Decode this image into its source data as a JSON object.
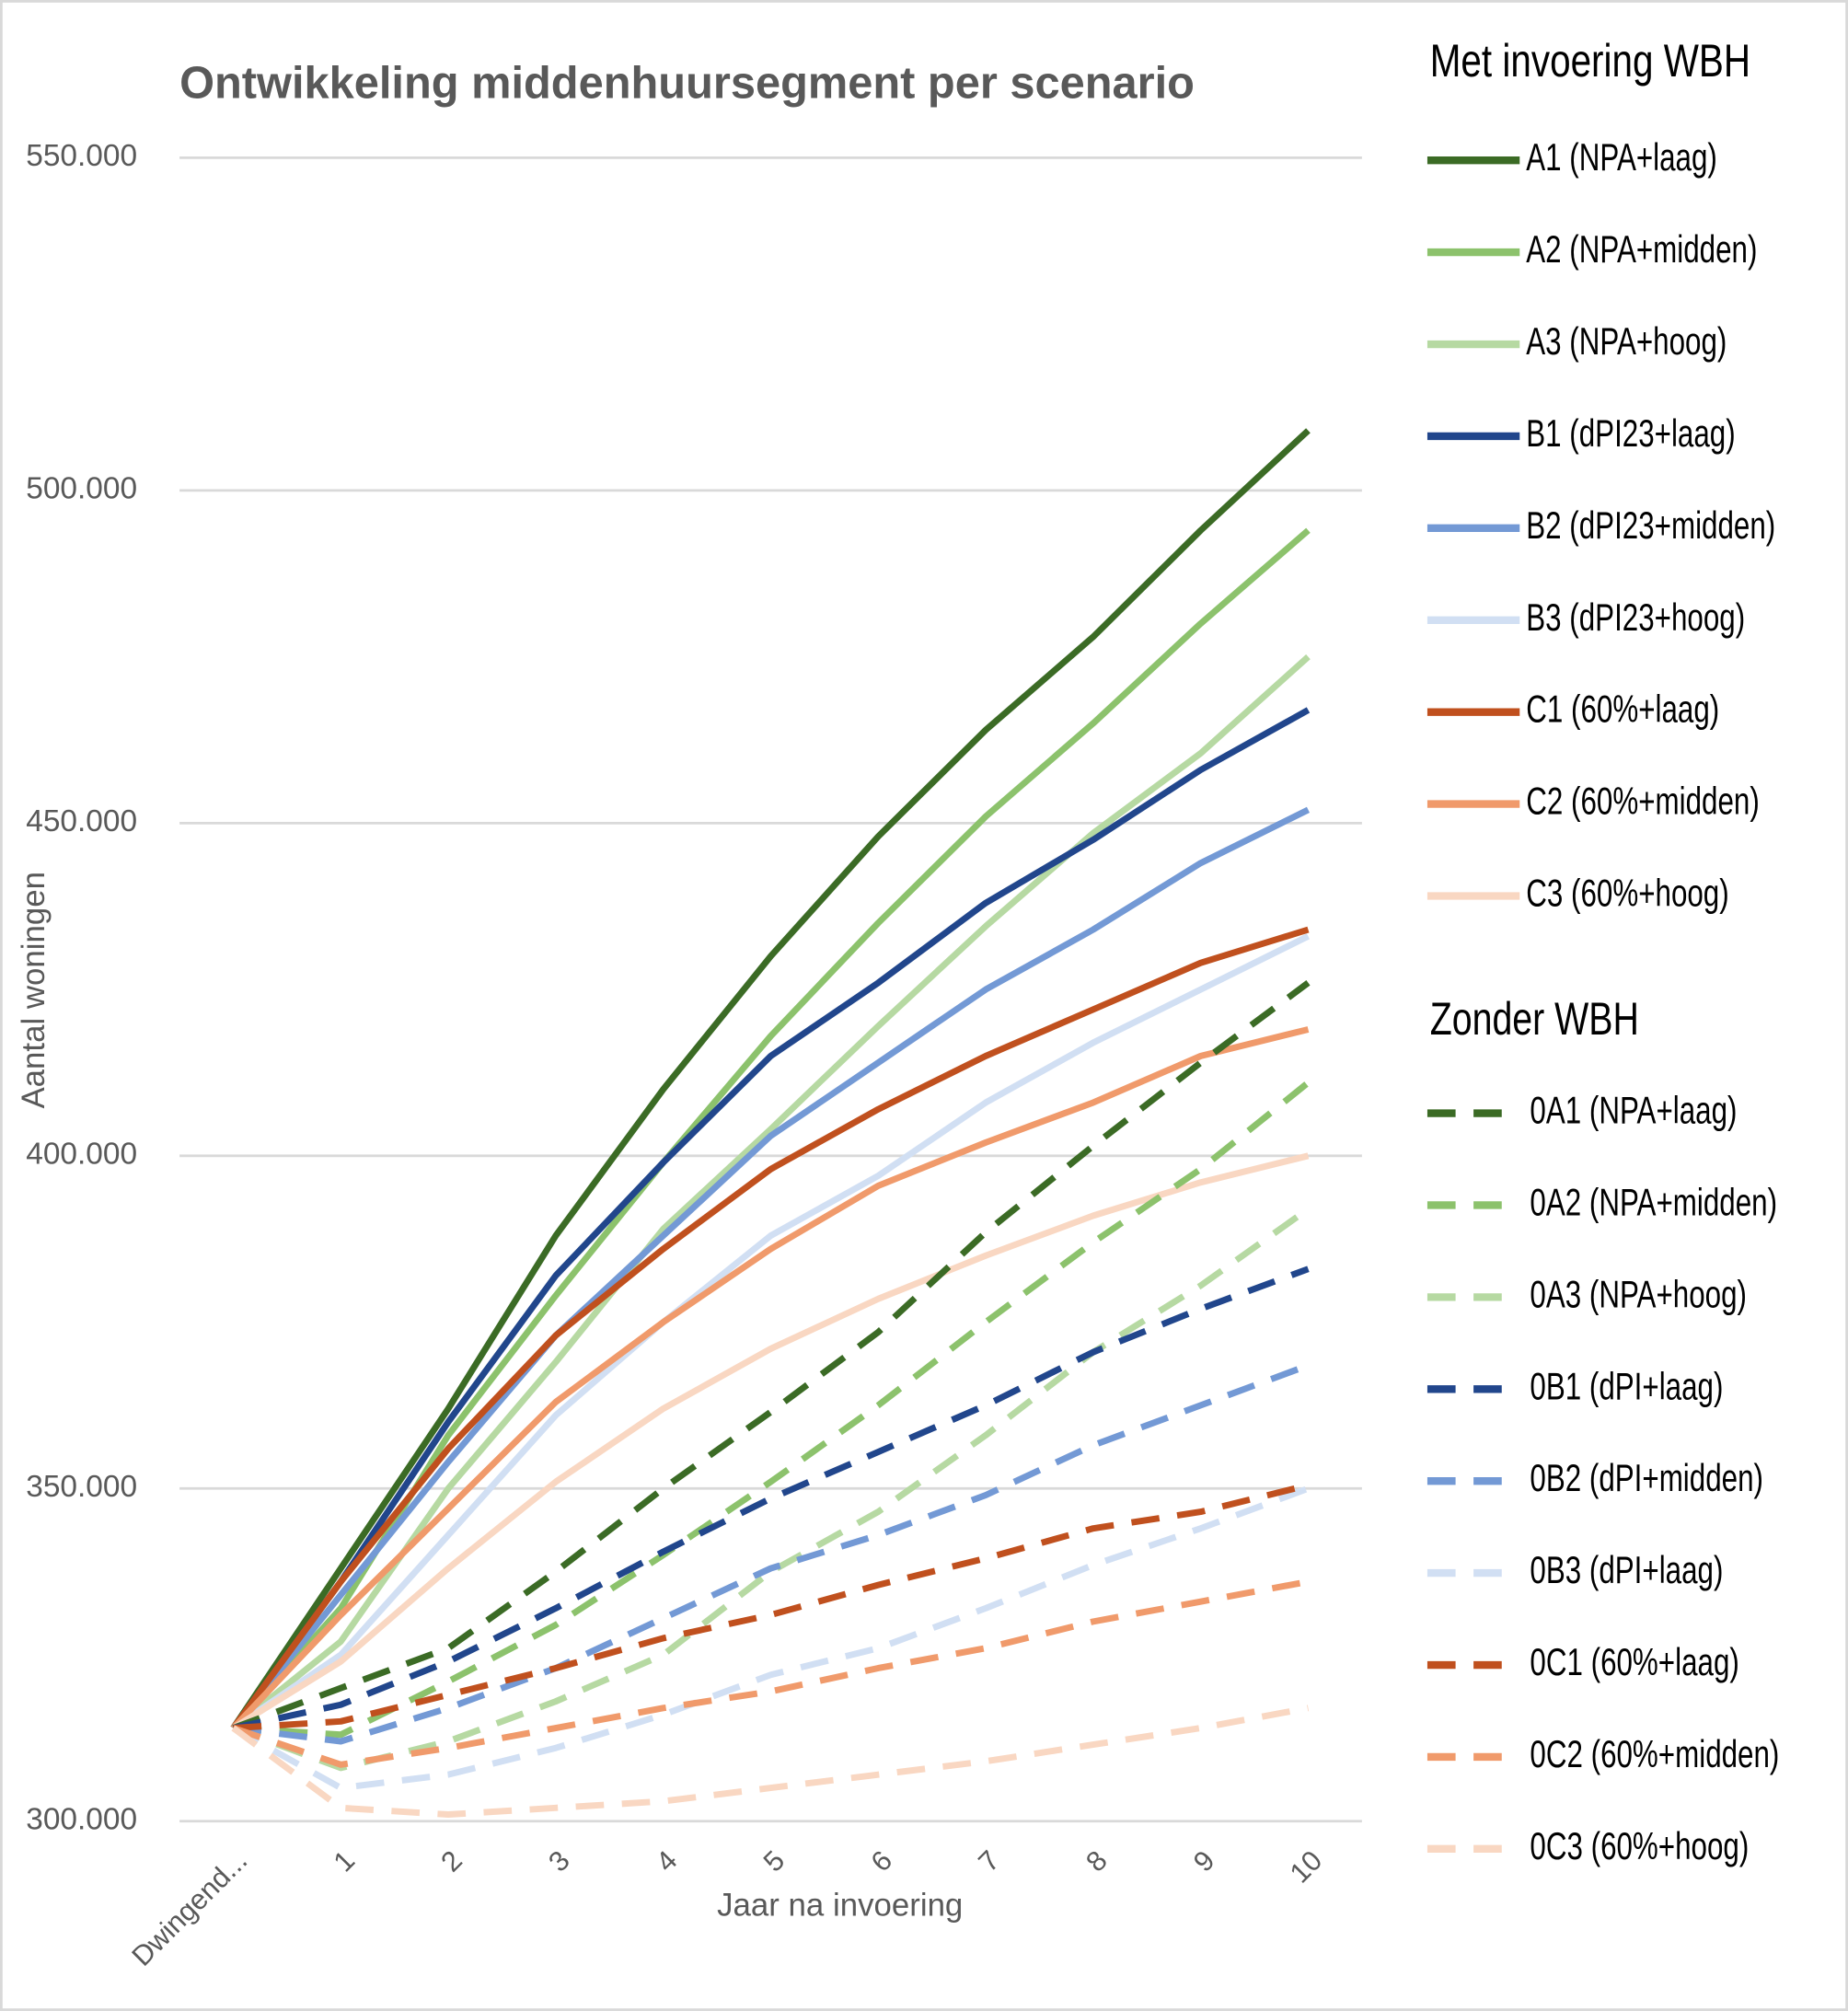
{
  "chart_data": {
    "type": "line",
    "title": "Ontwikkeling middenhuursegment per scenario",
    "x_label": "Jaar na invoering",
    "y_label": "Aantal woningen",
    "categories": [
      "Dwingend...",
      "1",
      "2",
      "3",
      "4",
      "5",
      "6",
      "7",
      "8",
      "9",
      "10"
    ],
    "ylim": [
      300000,
      550000
    ],
    "yticks": [
      {
        "value": 300000,
        "label": "300.000"
      },
      {
        "value": 350000,
        "label": "350.000"
      },
      {
        "value": 400000,
        "label": "400.000"
      },
      {
        "value": 450000,
        "label": "450.000"
      },
      {
        "value": 500000,
        "label": "500.000"
      },
      {
        "value": 550000,
        "label": "550.000"
      }
    ],
    "grid": true,
    "legend_position": "right",
    "legend_titles": [
      "Met invoering WBH",
      "Zonder WBH"
    ],
    "series": [
      {
        "name": "A1 (NPA+laag)",
        "color": "#3b6b25",
        "dashed": false,
        "values": [
          314000,
          338000,
          362000,
          388000,
          410000,
          430000,
          448000,
          464000,
          478000,
          494000,
          509000
        ]
      },
      {
        "name": "A2 (NPA+midden)",
        "color": "#8cc26c",
        "dashed": false,
        "values": [
          314000,
          332000,
          358000,
          379000,
          399000,
          418000,
          435000,
          451000,
          465000,
          480000,
          494000
        ]
      },
      {
        "name": "A3 (NPA+hoog)",
        "color": "#b6d9a2",
        "dashed": false,
        "values": [
          314000,
          327000,
          350000,
          369000,
          389000,
          404000,
          419500,
          434500,
          448500,
          460500,
          475000
        ]
      },
      {
        "name": "B1 (dPI23+laag)",
        "color": "#21468c",
        "dashed": false,
        "values": [
          314000,
          336000,
          360000,
          382000,
          399000,
          415000,
          426000,
          438000,
          447500,
          458000,
          467000
        ]
      },
      {
        "name": "B2 (dPI23+midden)",
        "color": "#7399d5",
        "dashed": false,
        "values": [
          314000,
          334000,
          354000,
          373000,
          388000,
          403000,
          414000,
          425000,
          434000,
          444000,
          452000
        ]
      },
      {
        "name": "B3 (dPI23+hoog)",
        "color": "#d1dff3",
        "dashed": false,
        "values": [
          314000,
          325000,
          343000,
          361000,
          375000,
          388000,
          397000,
          408000,
          417000,
          425000,
          433000
        ]
      },
      {
        "name": "C1 (60%+laag)",
        "color": "#c0501e",
        "dashed": false,
        "values": [
          314000,
          336000,
          356000,
          373000,
          386000,
          398000,
          407000,
          415000,
          422000,
          429000,
          434000
        ]
      },
      {
        "name": "C2 (60%+midden)",
        "color": "#f09a6b",
        "dashed": false,
        "values": [
          314000,
          331000,
          347000,
          363000,
          375000,
          386000,
          395500,
          402000,
          408000,
          415000,
          419000
        ]
      },
      {
        "name": "C3 (60%+hoog)",
        "color": "#f9d7c2",
        "dashed": false,
        "values": [
          314000,
          324000,
          338000,
          351000,
          362000,
          371000,
          378500,
          385000,
          391000,
          396000,
          400000
        ]
      },
      {
        "name": "0A1 (NPA+laag)",
        "color": "#3b6b25",
        "dashed": true,
        "values": [
          314000,
          320000,
          326000,
          337500,
          350000,
          361500,
          373500,
          388500,
          401500,
          414000,
          426000
        ]
      },
      {
        "name": "0A2 (NPA+midden)",
        "color": "#8cc26c",
        "dashed": true,
        "values": [
          314000,
          313000,
          321000,
          329500,
          340000,
          351000,
          362500,
          375000,
          387000,
          398000,
          411000
        ]
      },
      {
        "name": "0A3 (NPA+hoog)",
        "color": "#b6d9a2",
        "dashed": true,
        "values": [
          314000,
          308000,
          312000,
          318000,
          325000,
          337500,
          346500,
          358000,
          370500,
          380500,
          392000
        ]
      },
      {
        "name": "0B1 (dPI+laag)",
        "color": "#21468c",
        "dashed": true,
        "values": [
          314000,
          317500,
          324000,
          332000,
          340500,
          348500,
          355500,
          362500,
          370500,
          377000,
          383000
        ]
      },
      {
        "name": "0B2 (dPI+midden)",
        "color": "#7399d5",
        "dashed": true,
        "values": [
          314000,
          312000,
          317000,
          323000,
          330500,
          338000,
          343000,
          349000,
          356500,
          362500,
          368500
        ]
      },
      {
        "name": "0B3 (dPI+laag)",
        "color": "#d1dff3",
        "dashed": true,
        "values": [
          314000,
          305000,
          307000,
          311000,
          316000,
          322000,
          326000,
          332000,
          338500,
          344000,
          350000
        ]
      },
      {
        "name": "0C1 (60%+laag)",
        "color": "#c0501e",
        "dashed": true,
        "values": [
          314000,
          315000,
          319000,
          323000,
          327500,
          331000,
          335500,
          339500,
          344000,
          346500,
          350500
        ]
      },
      {
        "name": "0C2 (60%+midden)",
        "color": "#f09a6b",
        "dashed": true,
        "values": [
          314000,
          308500,
          311000,
          314000,
          317000,
          319500,
          323000,
          326000,
          330000,
          333000,
          336000
        ]
      },
      {
        "name": "0C3 (60%+hoog)",
        "color": "#f9d7c2",
        "dashed": true,
        "values": [
          314000,
          302000,
          301000,
          302000,
          303000,
          305000,
          307000,
          309000,
          311500,
          314000,
          317000
        ]
      }
    ]
  }
}
